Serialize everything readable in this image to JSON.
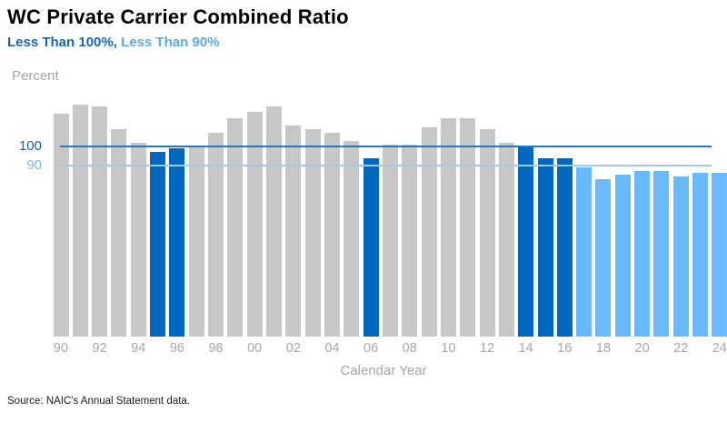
{
  "header": {
    "title": "WC Private Carrier Combined Ratio",
    "subtitle_lt100": "Less Than 100%,",
    "subtitle_lt90": "Less Than 90%"
  },
  "axis": {
    "y_axis_title": "Percent",
    "x_axis_title": "Calendar Year",
    "y_ref_100_label": "100",
    "y_ref_90_label": "90"
  },
  "footer": {
    "source": "Source: NAIC's Annual Statement data."
  },
  "colors": {
    "bar_default": "#C7C7C7",
    "bar_lt100": "#0067BE",
    "bar_lt90": "#67BAFD",
    "gridline_100": "#2E75B6",
    "gridline_90": "#9DC9F2",
    "label_100": "#1C5FA8",
    "label_90": "#7FB8EA",
    "axis_text": "#A6A6A6",
    "title_text": "#000000",
    "subtitle_lt100": "#1565C0",
    "subtitle_lt90": "#5CA9E8"
  },
  "chart_data": {
    "type": "bar",
    "title": "WC Private Carrier Combined Ratio",
    "subtitle": "Less Than 100%, Less Than 90%",
    "xlabel": "Calendar Year",
    "ylabel": "Percent",
    "ylim": [
      0,
      125
    ],
    "grid": "horizontal reference lines at 100 and 90 only",
    "legend_position": "subtitle acts as color legend",
    "bands": {
      "default": "combined ratio 100 or higher (gray)",
      "lt100": "Less Than 100% (dark blue)",
      "lt90": "Less Than 90% (light blue)"
    },
    "gridlines": [
      {
        "value": 100,
        "label": "100"
      },
      {
        "value": 90,
        "label": "90"
      }
    ],
    "x_tick_labels": [
      "90",
      "92",
      "94",
      "96",
      "98",
      "00",
      "02",
      "04",
      "06",
      "08",
      "10",
      "12",
      "14",
      "16",
      "18",
      "20",
      "22",
      "24"
    ],
    "points": [
      {
        "year": 1990,
        "value": 117,
        "band": "default"
      },
      {
        "year": 1991,
        "value": 122,
        "band": "default"
      },
      {
        "year": 1992,
        "value": 121,
        "band": "default"
      },
      {
        "year": 1993,
        "value": 109,
        "band": "default"
      },
      {
        "year": 1994,
        "value": 102,
        "band": "default"
      },
      {
        "year": 1995,
        "value": 97,
        "band": "lt100"
      },
      {
        "year": 1996,
        "value": 99,
        "band": "lt100"
      },
      {
        "year": 1997,
        "value": 100,
        "band": "default"
      },
      {
        "year": 1998,
        "value": 107,
        "band": "default"
      },
      {
        "year": 1999,
        "value": 115,
        "band": "default"
      },
      {
        "year": 2000,
        "value": 118,
        "band": "default"
      },
      {
        "year": 2001,
        "value": 121,
        "band": "default"
      },
      {
        "year": 2002,
        "value": 111,
        "band": "default"
      },
      {
        "year": 2003,
        "value": 109,
        "band": "default"
      },
      {
        "year": 2004,
        "value": 107,
        "band": "default"
      },
      {
        "year": 2005,
        "value": 103,
        "band": "default"
      },
      {
        "year": 2006,
        "value": 94,
        "band": "lt100"
      },
      {
        "year": 2007,
        "value": 101,
        "band": "default"
      },
      {
        "year": 2008,
        "value": 101,
        "band": "default"
      },
      {
        "year": 2009,
        "value": 110,
        "band": "default"
      },
      {
        "year": 2010,
        "value": 115,
        "band": "default"
      },
      {
        "year": 2011,
        "value": 115,
        "band": "default"
      },
      {
        "year": 2012,
        "value": 109,
        "band": "default"
      },
      {
        "year": 2013,
        "value": 102,
        "band": "default"
      },
      {
        "year": 2014,
        "value": 100,
        "band": "lt100"
      },
      {
        "year": 2015,
        "value": 94,
        "band": "lt100"
      },
      {
        "year": 2016,
        "value": 94,
        "band": "lt100"
      },
      {
        "year": 2017,
        "value": 89,
        "band": "lt90"
      },
      {
        "year": 2018,
        "value": 83,
        "band": "lt90"
      },
      {
        "year": 2019,
        "value": 85,
        "band": "lt90"
      },
      {
        "year": 2020,
        "value": 87,
        "band": "lt90"
      },
      {
        "year": 2021,
        "value": 87,
        "band": "lt90"
      },
      {
        "year": 2022,
        "value": 84,
        "band": "lt90"
      },
      {
        "year": 2023,
        "value": 86,
        "band": "lt90"
      },
      {
        "year": 2024,
        "value": 86,
        "band": "lt90"
      }
    ]
  }
}
